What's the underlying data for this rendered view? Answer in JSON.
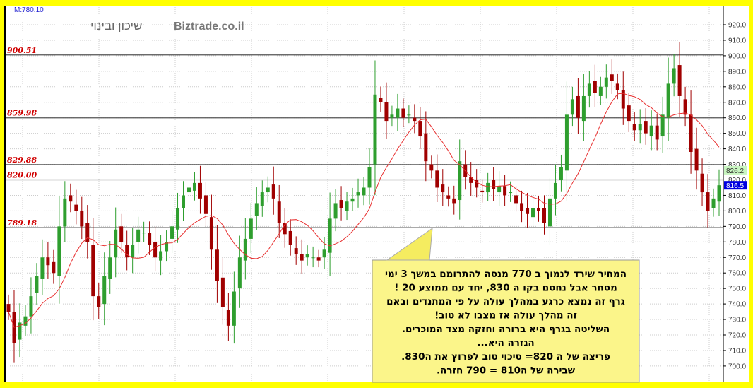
{
  "header": {
    "m_value": "M:780.10",
    "instrument": "שיכון ובינוי",
    "watermark": "Biztrade.co.il"
  },
  "chart_data": {
    "type": "candlestick",
    "ylim": [
      695,
      925
    ],
    "y_ticks": [
      "700.0",
      "710.0",
      "720.0",
      "730.0",
      "740.0",
      "750.0",
      "760.0",
      "770.0",
      "780.0",
      "790.0",
      "800.0",
      "810.0",
      "820.0",
      "830.0",
      "840.0",
      "850.0",
      "860.0",
      "870.0",
      "880.0",
      "890.0",
      "900.0",
      "910.0",
      "920.0"
    ],
    "grid": true,
    "close": [
      735,
      715,
      728,
      732,
      745,
      758,
      770,
      765,
      760,
      790,
      808,
      806,
      800,
      790,
      780,
      745,
      738,
      758,
      770,
      788,
      780,
      770,
      778,
      788,
      786,
      778,
      770,
      774,
      780,
      790,
      802,
      810,
      815,
      818,
      808,
      798,
      775,
      755,
      738,
      726,
      748,
      770,
      782,
      795,
      805,
      812,
      815,
      808,
      792,
      785,
      778,
      772,
      768,
      772,
      770,
      768,
      775,
      795,
      805,
      802,
      806,
      808,
      812,
      815,
      828,
      875,
      870,
      858,
      862,
      866,
      860,
      862,
      858,
      848,
      832,
      826,
      815,
      812,
      808,
      805,
      832,
      822,
      818,
      815,
      812,
      818,
      814,
      816,
      810,
      812,
      805,
      800,
      798,
      802,
      800,
      792,
      808,
      818,
      828,
      862,
      872,
      860,
      874,
      882,
      876,
      880,
      886,
      884,
      878,
      866,
      858,
      852,
      856,
      850,
      855,
      846,
      862,
      882,
      892,
      874,
      862,
      838,
      826,
      812,
      800,
      808,
      816.5
    ],
    "moving_average_color": "#e83030",
    "up_color": "#2e9e2e",
    "down_color": "#a00000",
    "levels": [
      {
        "value": 900.51,
        "label": "900.51"
      },
      {
        "value": 859.98,
        "label": "859.98"
      },
      {
        "value": 829.88,
        "label": "829.88"
      },
      {
        "value": 820.0,
        "label": "820.00"
      },
      {
        "value": 789.18,
        "label": "789.18"
      }
    ],
    "last_badges": [
      {
        "value": 826.2,
        "label": "826.2",
        "color": "#c8f5c0"
      },
      {
        "value": 816.5,
        "label": "816.5",
        "color": "#0000e0"
      }
    ]
  },
  "note": {
    "lines": [
      "המחיר  שירד  לנמוך ב 770 מנסה להתרומם  במשך  3 ימי",
      "מסחר אבל   נחסם  בקו  ה 830, יחד  עם ממוצע 20 !",
      "גרף זה נמצא  כרגע  במהלך עולה  על פי  המתנדים ובאם",
      "זה  מהלך עולה  אז  מצבו לא טוב!",
      "השליטה  בגרף  היא   ברורה  וחזקה  מצד  המוכרים.",
      "הגזרה  היא...",
      "פריצה של  ה  820=  סיכוי טוב לפרוץ את  ה830.",
      "שבירה  של  ה810  =  790  חזרה."
    ],
    "background": "#fbf58a"
  }
}
